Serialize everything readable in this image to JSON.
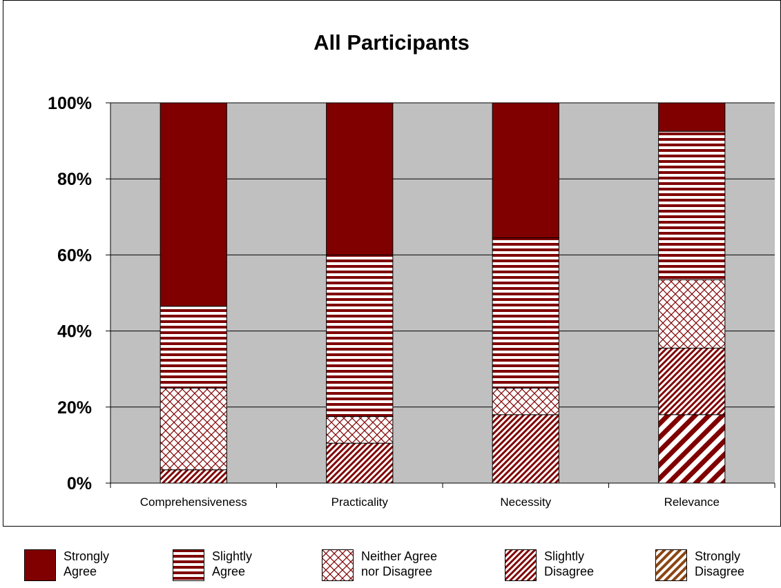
{
  "chart_data": {
    "type": "bar",
    "stacked": true,
    "percent_stacked": true,
    "title": "All Participants",
    "categories": [
      "Comprehensiveness",
      "Practicality",
      "Necessity",
      "Relevance"
    ],
    "ylim": [
      0,
      100
    ],
    "yticks": [
      0,
      20,
      40,
      60,
      80,
      100
    ],
    "ytick_labels": [
      "0%",
      "20%",
      "40%",
      "60%",
      "80%",
      "100%"
    ],
    "grid": true,
    "legend_position": "bottom",
    "series": [
      {
        "name": "Strongly Disagree",
        "values": [
          0,
          0,
          0,
          18
        ],
        "color": "#8B4513",
        "pattern": "wide-diagonal"
      },
      {
        "name": "Slightly Disagree",
        "values": [
          3.5,
          10.5,
          18,
          17.5
        ],
        "color": "#800000",
        "pattern": "narrow-diagonal"
      },
      {
        "name": "Neither Agree nor Disagree",
        "values": [
          21.5,
          7,
          7,
          18
        ],
        "color": "#800000",
        "pattern": "crosshatch"
      },
      {
        "name": "Slightly Agree",
        "values": [
          21.5,
          42.5,
          39.5,
          39
        ],
        "color": "#800000",
        "pattern": "horizontal"
      },
      {
        "name": "Strongly Agree",
        "values": [
          53.5,
          40,
          35.5,
          7.5
        ],
        "color": "#800000",
        "pattern": "solid"
      }
    ]
  },
  "legend": {
    "items": [
      {
        "label": "Strongly\nAgree",
        "pattern": "solid"
      },
      {
        "label": "Slightly\nAgree",
        "pattern": "horizontal"
      },
      {
        "label": "Neither Agree\nnor Disagree",
        "pattern": "crosshatch"
      },
      {
        "label": "Slightly\nDisagree",
        "pattern": "narrow-diagonal"
      },
      {
        "label": "Strongly\nDisagree",
        "pattern": "wide-diagonal"
      }
    ]
  },
  "colors": {
    "plot_background": "#C0C0C0",
    "bar_color": "#800000",
    "strongly_disagree_color": "#8B4513"
  }
}
